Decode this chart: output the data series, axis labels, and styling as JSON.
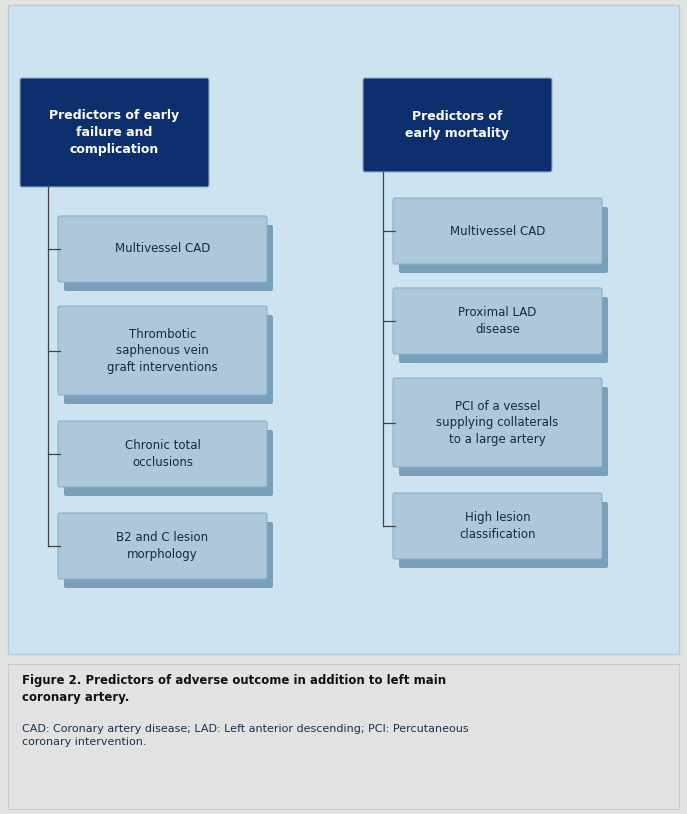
{
  "bg_color": "#cde3f0",
  "caption_bg": "#e2e2e2",
  "header_color": "#0d2f6e",
  "box_color": "#adc8da",
  "box_gradient_top": "#bdd4e4",
  "box_shadow_color": "#7a9fb8",
  "text_color": "#1a2a3a",
  "header_text_color": "#ffffff",
  "line_color": "#444444",
  "left_header": "Predictors of early\nfailure and\ncomplication",
  "right_header": "Predictors of\nearly mortality",
  "left_items": [
    "Multivessel CAD",
    "Thrombotic\nsaphenous vein\ngraft interventions",
    "Chronic total\nocclusions",
    "B2 and C lesion\nmorphology"
  ],
  "right_items": [
    "Multivessel CAD",
    "Proximal LAD\ndisease",
    "PCI of a vessel\nsupplying collaterals\nto a large artery",
    "High lesion\nclassification"
  ],
  "caption_bold": "Figure 2. Predictors of adverse outcome in addition to left main\ncoronary artery.",
  "caption_normal": "CAD: Coronary artery disease; LAD: Left anterior descending; PCI: Percutaneous\ncoronary intervention.",
  "fig_width": 6.87,
  "fig_height": 8.14,
  "dpi": 100
}
